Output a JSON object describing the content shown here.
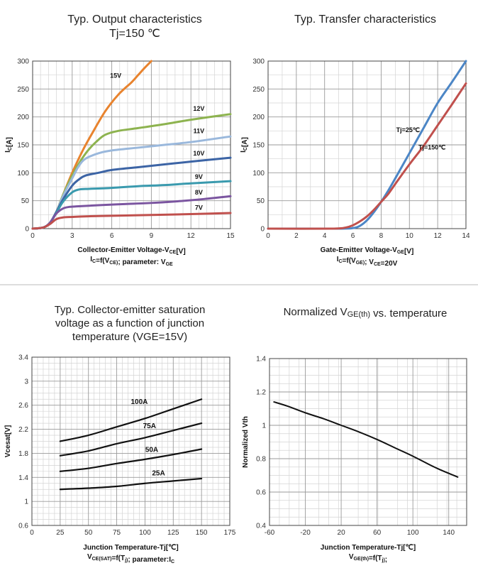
{
  "chart_data": [
    {
      "type": "line",
      "title": [
        "Typ. Output characteristics",
        "Tj=150 ℃"
      ],
      "xlabel": "Collector-Emitter Voltage-V_CE[V]",
      "xlabel_sub": "I_C=f(V_CE); parameter: V_GE",
      "ylabel": "I_C[A]",
      "xlim": [
        0,
        15
      ],
      "ylim": [
        0,
        300
      ],
      "xticks": [
        0,
        3,
        6,
        9,
        12,
        15
      ],
      "yticks": [
        0,
        50,
        100,
        150,
        200,
        250,
        300
      ],
      "series": [
        {
          "name": "15V",
          "color": "#E8832E",
          "label_at": [
            6.3,
            270
          ],
          "x": [
            0,
            0.8,
            1.3,
            1.8,
            2.3,
            3,
            3.8,
            4.5,
            5.5,
            6.5,
            7.5,
            8,
            8.5,
            9
          ],
          "y": [
            0,
            2,
            10,
            30,
            60,
            100,
            140,
            170,
            210,
            240,
            262,
            275,
            288,
            300
          ]
        },
        {
          "name": "12V",
          "color": "#8DB34F",
          "label_at": [
            12.6,
            211
          ],
          "x": [
            0,
            0.8,
            1.3,
            1.8,
            2.3,
            3,
            3.6,
            4.2,
            4.8,
            5.5,
            6.5,
            8,
            10,
            12,
            15
          ],
          "y": [
            0,
            2,
            10,
            30,
            60,
            95,
            120,
            140,
            155,
            168,
            175,
            180,
            187,
            195,
            205
          ]
        },
        {
          "name": "11V",
          "color": "#9AB8DC",
          "label_at": [
            12.6,
            171
          ],
          "x": [
            0,
            0.8,
            1.3,
            1.8,
            2.3,
            3,
            3.5,
            4,
            5,
            6,
            8,
            10,
            12,
            15
          ],
          "y": [
            0,
            2,
            10,
            30,
            58,
            90,
            112,
            125,
            135,
            140,
            145,
            150,
            155,
            165
          ]
        },
        {
          "name": "10V",
          "color": "#3C64A5",
          "label_at": [
            12.6,
            131
          ],
          "x": [
            0,
            0.8,
            1.3,
            1.8,
            2.3,
            3,
            3.5,
            4,
            5,
            6,
            8,
            10,
            12,
            15
          ],
          "y": [
            0,
            2,
            10,
            30,
            52,
            77,
            88,
            95,
            100,
            105,
            110,
            115,
            120,
            127
          ]
        },
        {
          "name": "9V",
          "color": "#3A9AAE",
          "label_at": [
            12.6,
            89
          ],
          "x": [
            0,
            0.8,
            1.3,
            1.8,
            2.3,
            3,
            3.5,
            4,
            6,
            8,
            10,
            12,
            15
          ],
          "y": [
            0,
            2,
            10,
            28,
            48,
            65,
            70,
            71,
            73,
            76,
            78,
            81,
            85
          ]
        },
        {
          "name": "8V",
          "color": "#7B55A0",
          "label_at": [
            12.6,
            61
          ],
          "x": [
            0,
            0.8,
            1.3,
            1.8,
            2.3,
            2.8,
            3.5,
            5,
            7,
            9,
            11,
            13,
            15
          ],
          "y": [
            0,
            2,
            10,
            27,
            36,
            39,
            40,
            42,
            44,
            46,
            49,
            53,
            58
          ]
        },
        {
          "name": "7V",
          "color": "#C0504D",
          "label_at": [
            12.6,
            34
          ],
          "x": [
            0,
            0.8,
            1.3,
            1.8,
            2.3,
            3,
            4,
            6,
            8,
            10,
            12,
            15
          ],
          "y": [
            0,
            2,
            8,
            17,
            20,
            21,
            22,
            23,
            24,
            25,
            26,
            28
          ]
        }
      ]
    },
    {
      "type": "line",
      "title": [
        "Typ. Transfer characteristics"
      ],
      "xlabel": "Gate-Emitter Voltage-V_GE[V]",
      "xlabel_sub": "I_C=f(V_GE); V_CE=20V",
      "ylabel": "I_C[A]",
      "xlim": [
        0,
        14
      ],
      "ylim": [
        0,
        300
      ],
      "xticks": [
        0,
        2,
        4,
        6,
        8,
        10,
        12,
        14
      ],
      "yticks": [
        0,
        50,
        100,
        150,
        200,
        250,
        300
      ],
      "series": [
        {
          "name": "Tj=25℃",
          "color": "#4C86C6",
          "label_at": [
            9.9,
            173
          ],
          "x": [
            0,
            5,
            6,
            6.5,
            7,
            7.5,
            8,
            8.5,
            9,
            10,
            11,
            12,
            13,
            14
          ],
          "y": [
            0,
            0,
            1,
            5,
            15,
            30,
            48,
            68,
            90,
            135,
            180,
            225,
            262,
            300
          ]
        },
        {
          "name": "Tj=150℃",
          "color": "#C0504D",
          "label_at": [
            11.6,
            142
          ],
          "x": [
            0,
            4.5,
            5.5,
            6,
            6.5,
            7,
            7.5,
            8,
            8.5,
            9,
            10,
            11,
            12,
            13,
            14
          ],
          "y": [
            0,
            0,
            2,
            6,
            13,
            22,
            34,
            48,
            62,
            80,
            115,
            148,
            185,
            222,
            260
          ]
        }
      ]
    },
    {
      "type": "line",
      "title": [
        "Typ. Collector-emitter saturation",
        "voltage as a function of junction",
        "temperature (VGE=15V)"
      ],
      "xlabel": "Junction Temperature-Tj[℃]",
      "xlabel_sub": "V_CE(SAT)=f(T_j); parameter:I_C",
      "ylabel": "Vcesat[V]",
      "xlim": [
        0,
        175
      ],
      "ylim": [
        0.6,
        3.4
      ],
      "xticks": [
        0,
        25,
        50,
        75,
        100,
        125,
        150,
        175
      ],
      "yticks": [
        0.6,
        1,
        1.4,
        1.8,
        2.2,
        2.6,
        3,
        3.4
      ],
      "series": [
        {
          "name": "100A",
          "color": "#111111",
          "label_at": [
            95,
            2.62
          ],
          "x": [
            25,
            50,
            75,
            100,
            125,
            150
          ],
          "y": [
            2.0,
            2.1,
            2.24,
            2.38,
            2.54,
            2.7
          ]
        },
        {
          "name": "75A",
          "color": "#111111",
          "label_at": [
            104,
            2.22
          ],
          "x": [
            25,
            50,
            75,
            100,
            125,
            150
          ],
          "y": [
            1.76,
            1.84,
            1.96,
            2.06,
            2.18,
            2.3
          ]
        },
        {
          "name": "50A",
          "color": "#111111",
          "label_at": [
            106,
            1.82
          ],
          "x": [
            25,
            50,
            75,
            100,
            125,
            150
          ],
          "y": [
            1.5,
            1.55,
            1.63,
            1.7,
            1.78,
            1.87
          ]
        },
        {
          "name": "25A",
          "color": "#111111",
          "label_at": [
            112,
            1.43
          ],
          "x": [
            25,
            50,
            75,
            100,
            125,
            150
          ],
          "y": [
            1.2,
            1.22,
            1.25,
            1.3,
            1.34,
            1.38
          ]
        }
      ]
    },
    {
      "type": "line",
      "title": [
        "Normalized V_GE(th) vs. temperature"
      ],
      "xlabel": "Junction Temperature-Tj[℃]",
      "xlabel_sub": "V_GE(th)=f(T_j);",
      "ylabel": "Normalized Vth",
      "xlim": [
        -60,
        160
      ],
      "ylim": [
        0.4,
        1.4
      ],
      "xticks": [
        -60,
        -20,
        20,
        60,
        100,
        140
      ],
      "yticks": [
        0.4,
        0.6,
        0.8,
        1,
        1.2,
        1.4
      ],
      "series": [
        {
          "name": "Normalized Vth",
          "color": "#111111",
          "x": [
            -55,
            -40,
            -20,
            0,
            20,
            40,
            60,
            80,
            100,
            120,
            130,
            150
          ],
          "y": [
            1.14,
            1.115,
            1.075,
            1.04,
            1.0,
            0.96,
            0.915,
            0.865,
            0.815,
            0.76,
            0.735,
            0.69
          ]
        }
      ]
    }
  ]
}
